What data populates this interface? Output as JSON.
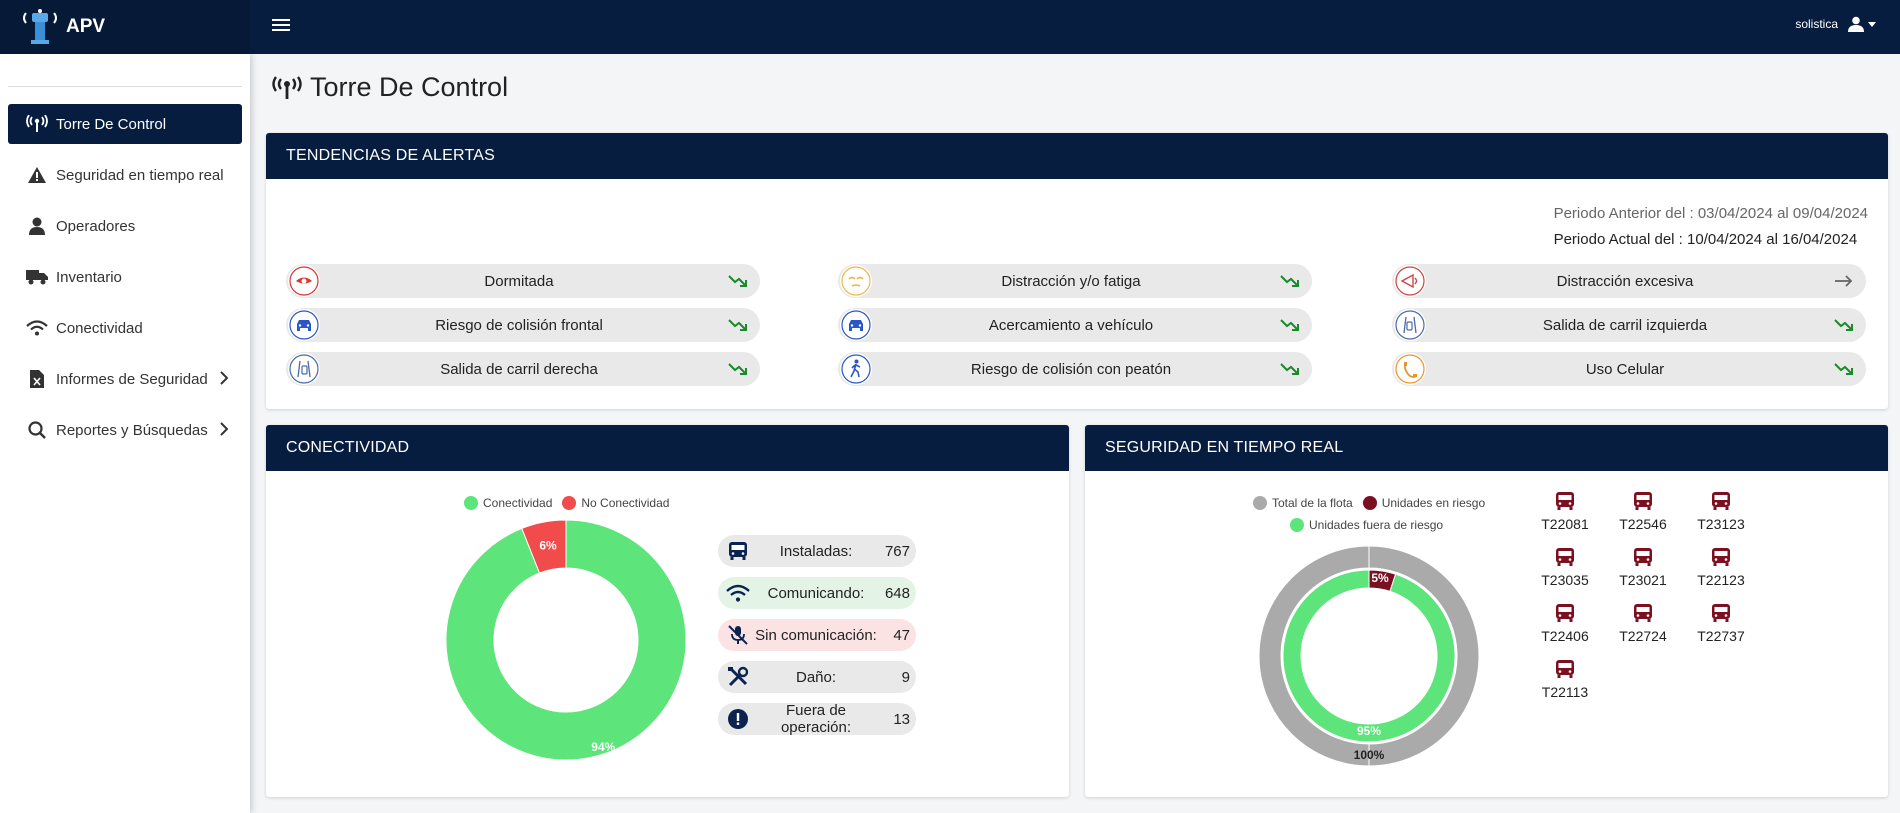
{
  "app": {
    "brand": "APV",
    "user": "solistica"
  },
  "sidebar": {
    "items": [
      {
        "label": "Torre De Control",
        "icon": "antenna-icon",
        "active": true
      },
      {
        "label": "Seguridad en tiempo real",
        "icon": "warning-icon"
      },
      {
        "label": "Operadores",
        "icon": "user-icon"
      },
      {
        "label": "Inventario",
        "icon": "truck-icon"
      },
      {
        "label": "Conectividad",
        "icon": "wifi-icon"
      },
      {
        "label": "Informes de Seguridad",
        "icon": "excel-file-icon",
        "has_submenu": true
      },
      {
        "label": "Reportes y Búsquedas",
        "icon": "search-icon",
        "has_submenu": true
      }
    ]
  },
  "page": {
    "title": "Torre De Control"
  },
  "alerts": {
    "header": "TENDENCIAS DE ALERTAS",
    "period_prev_label": "Periodo Anterior del :",
    "period_prev_value": "03/04/2024 al 09/04/2024",
    "period_cur_label": "Periodo Actual del :",
    "period_cur_value": "10/04/2024 al 16/04/2024",
    "items": [
      {
        "label": "Dormitada",
        "icon": "eye-icon",
        "trend": "down"
      },
      {
        "label": "Distracción y/o fatiga",
        "icon": "drowsy-face-icon",
        "trend": "down"
      },
      {
        "label": "Distracción excesiva",
        "icon": "distraction-icon",
        "trend": "flat"
      },
      {
        "label": "Riesgo de colisión frontal",
        "icon": "car-front-icon",
        "trend": "down"
      },
      {
        "label": "Acercamiento a vehículo",
        "icon": "car-front-icon",
        "trend": "down"
      },
      {
        "label": "Salida de carril izquierda",
        "icon": "lane-left-icon",
        "trend": "down"
      },
      {
        "label": "Salida de carril derecha",
        "icon": "lane-right-icon",
        "trend": "down"
      },
      {
        "label": "Riesgo de colisión con peatón",
        "icon": "pedestrian-icon",
        "trend": "down"
      },
      {
        "label": "Uso Celular",
        "icon": "phone-icon",
        "trend": "down"
      }
    ]
  },
  "connectivity": {
    "header": "CONECTIVIDAD",
    "legend": [
      {
        "label": "Conectividad",
        "color": "#5de47b"
      },
      {
        "label": "No Conectividad",
        "color": "#f24b4b"
      }
    ],
    "stats": [
      {
        "label": "Instaladas:",
        "value": "767",
        "icon": "bus-icon",
        "bg": "#e9e9ea"
      },
      {
        "label": "Comunicando:",
        "value": "648",
        "icon": "wifi-icon",
        "bg": "#e3f3e6"
      },
      {
        "label": "Sin comunicación:",
        "value": "47",
        "icon": "no-signal-icon",
        "bg": "#fbe3e3"
      },
      {
        "label": "Daño:",
        "value": "9",
        "icon": "tools-icon",
        "bg": "#e9e9ea"
      },
      {
        "label": "Fuera de operación:",
        "value": "13",
        "icon": "exclamation-icon",
        "bg": "#e9e9ea"
      }
    ]
  },
  "realtime": {
    "header": "SEGURIDAD EN TIEMPO REAL",
    "legend": [
      {
        "label": "Total de la flota",
        "color": "#aaaaaa"
      },
      {
        "label": "Unidades en riesgo",
        "color": "#7a1020"
      },
      {
        "label": "Unidades fuera de riesgo",
        "color": "#5de47b"
      }
    ],
    "units": [
      "T22081",
      "T22546",
      "T23123",
      "T23035",
      "T23021",
      "T22123",
      "T22406",
      "T22724",
      "T22737",
      "T22113"
    ]
  },
  "chart_data": [
    {
      "type": "pie",
      "categories": [
        "Conectividad",
        "No Conectividad"
      ],
      "values": [
        94,
        6
      ],
      "data_labels": [
        "94%",
        "6%"
      ],
      "colors": [
        "#5de47b",
        "#f24b4b"
      ],
      "legend": "top"
    },
    {
      "type": "pie",
      "series": [
        {
          "name": "Total de la flota",
          "values": [
            100
          ],
          "data_labels": [
            "100%"
          ]
        },
        {
          "name": "Unidades en riesgo / Unidades fuera de riesgo",
          "values": [
            5,
            95
          ],
          "data_labels": [
            "5%",
            "95%"
          ]
        }
      ],
      "colors": [
        "#aaaaaa",
        "#7a1020",
        "#5de47b"
      ],
      "legend": "top"
    }
  ]
}
